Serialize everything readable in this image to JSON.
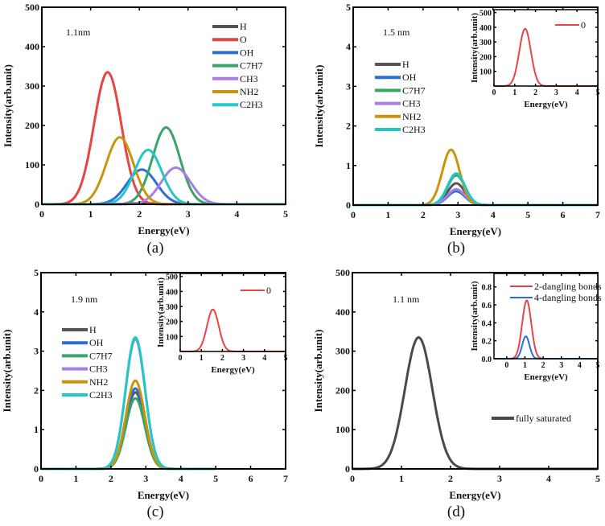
{
  "chart_data": [
    {
      "type": "line",
      "panel": "a",
      "caption": "(a)",
      "annotation": "1.1nm",
      "xlabel": "Energy(eV)",
      "ylabel": "Intensity(arb.unit)",
      "xlim": [
        0,
        5
      ],
      "ylim": [
        0,
        500
      ],
      "xticks": [
        0,
        1,
        2,
        3,
        4,
        5
      ],
      "yticks": [
        0,
        100,
        200,
        300,
        400,
        500
      ],
      "legend_position": "top-right",
      "series": [
        {
          "name": "H",
          "color": "#555555",
          "center": 2.05,
          "peak": 3,
          "sigma": 0.25
        },
        {
          "name": "O",
          "color": "#e84444",
          "center": 1.35,
          "peak": 335,
          "sigma": 0.28
        },
        {
          "name": "OH",
          "color": "#2b6fd6",
          "center": 2.05,
          "peak": 88,
          "sigma": 0.3
        },
        {
          "name": "C7H7",
          "color": "#3aa36a",
          "center": 2.55,
          "peak": 195,
          "sigma": 0.28
        },
        {
          "name": "CH3",
          "color": "#a87ee0",
          "center": 2.75,
          "peak": 93,
          "sigma": 0.3
        },
        {
          "name": "NH2",
          "color": "#c8960c",
          "center": 1.6,
          "peak": 170,
          "sigma": 0.28
        },
        {
          "name": "C2H3",
          "color": "#22c8c8",
          "center": 2.18,
          "peak": 138,
          "sigma": 0.28
        }
      ]
    },
    {
      "type": "line",
      "panel": "b",
      "caption": "(b)",
      "annotation": "1.5 nm",
      "xlabel": "Energy(eV)",
      "ylabel": "Intensity(arb.unit)",
      "xlim": [
        0,
        7
      ],
      "ylim": [
        0,
        5
      ],
      "xticks": [
        0,
        1,
        2,
        3,
        4,
        5,
        6,
        7
      ],
      "yticks": [
        0,
        1,
        2,
        3,
        4,
        5
      ],
      "legend_position": "upper-left",
      "series": [
        {
          "name": "H",
          "color": "#555555",
          "center": 2.95,
          "peak": 0.55,
          "sigma": 0.25
        },
        {
          "name": "OH",
          "color": "#2b6fd6",
          "center": 2.95,
          "peak": 0.35,
          "sigma": 0.25
        },
        {
          "name": "C7H7",
          "color": "#3aa36a",
          "center": 2.95,
          "peak": 0.75,
          "sigma": 0.25
        },
        {
          "name": "CH3",
          "color": "#a87ee0",
          "center": 2.95,
          "peak": 0.4,
          "sigma": 0.25
        },
        {
          "name": "NH2",
          "color": "#c8960c",
          "center": 2.8,
          "peak": 1.4,
          "sigma": 0.25
        },
        {
          "name": "C2H3",
          "color": "#22c8c8",
          "center": 2.95,
          "peak": 0.8,
          "sigma": 0.25
        }
      ],
      "inset": {
        "xlabel": "Energy(eV)",
        "ylabel": "Intensity(arb.unit)",
        "xlim": [
          0,
          5
        ],
        "ylim": [
          0,
          520
        ],
        "xticks": [
          0,
          1,
          2,
          3,
          4,
          5
        ],
        "yticks": [
          100,
          200,
          300,
          400,
          500
        ],
        "series": [
          {
            "name": "0",
            "color": "#e84444",
            "center": 1.5,
            "peak": 390,
            "sigma": 0.28
          }
        ]
      }
    },
    {
      "type": "line",
      "panel": "c",
      "caption": "(c)",
      "annotation": "1.9 nm",
      "xlabel": "Energy(eV)",
      "ylabel": "Intensity(arb.unit)",
      "xlim": [
        0,
        7
      ],
      "ylim": [
        0,
        5
      ],
      "xticks": [
        0,
        1,
        2,
        3,
        4,
        5,
        6,
        7
      ],
      "yticks": [
        0,
        1,
        2,
        3,
        4,
        5
      ],
      "legend_position": "upper-left",
      "series": [
        {
          "name": "H",
          "color": "#555555",
          "center": 2.7,
          "peak": 1.95,
          "sigma": 0.27
        },
        {
          "name": "OH",
          "color": "#2b6fd6",
          "center": 2.7,
          "peak": 2.05,
          "sigma": 0.27
        },
        {
          "name": "C7H7",
          "color": "#3aa36a",
          "center": 2.7,
          "peak": 1.8,
          "sigma": 0.27
        },
        {
          "name": "CH3",
          "color": "#a87ee0",
          "center": 2.7,
          "peak": 3.3,
          "sigma": 0.28
        },
        {
          "name": "NH2",
          "color": "#c8960c",
          "center": 2.7,
          "peak": 2.25,
          "sigma": 0.27
        },
        {
          "name": "C2H3",
          "color": "#22c8c8",
          "center": 2.7,
          "peak": 3.35,
          "sigma": 0.28
        }
      ],
      "inset": {
        "xlabel": "Energy(eV)",
        "ylabel": "Intensity(arb.unit)",
        "xlim": [
          0,
          5
        ],
        "ylim": [
          0,
          520
        ],
        "xticks": [
          0,
          1,
          2,
          3,
          4,
          5
        ],
        "yticks": [
          100,
          200,
          300,
          400,
          500
        ],
        "series": [
          {
            "name": "0",
            "color": "#e84444",
            "center": 1.55,
            "peak": 280,
            "sigma": 0.28
          }
        ]
      }
    },
    {
      "type": "line",
      "panel": "d",
      "caption": "(d)",
      "annotation": "1.1 nm",
      "xlabel": "Energy(eV)",
      "ylabel": "Intensity(arb.unit)",
      "xlim": [
        0,
        5
      ],
      "ylim": [
        0,
        500
      ],
      "xticks": [
        0,
        1,
        2,
        3,
        4,
        5
      ],
      "yticks": [
        0,
        100,
        200,
        300,
        400,
        500
      ],
      "legend_position": "center-right",
      "series": [
        {
          "name": "fully saturated",
          "color": "#4a4a4a",
          "center": 1.35,
          "peak": 335,
          "sigma": 0.28
        }
      ],
      "inset": {
        "xlabel": "Energy(eV)",
        "ylabel": "Intensity(arb.unit)",
        "xlim": [
          -0.7,
          5
        ],
        "ylim": [
          0,
          0.95
        ],
        "xticks": [
          0,
          1,
          2,
          3,
          4,
          5
        ],
        "yticks": [
          "0.0",
          "0.2",
          "0.4",
          "0.6",
          "0.8"
        ],
        "series": [
          {
            "name": "2-dangling bonds",
            "color": "#e84444",
            "center": 1.1,
            "peak": 0.65,
            "sigma": 0.25
          },
          {
            "name": "4-dangling bonds",
            "color": "#2b6fd6",
            "center": 1.05,
            "peak": 0.25,
            "sigma": 0.2
          }
        ]
      }
    }
  ]
}
